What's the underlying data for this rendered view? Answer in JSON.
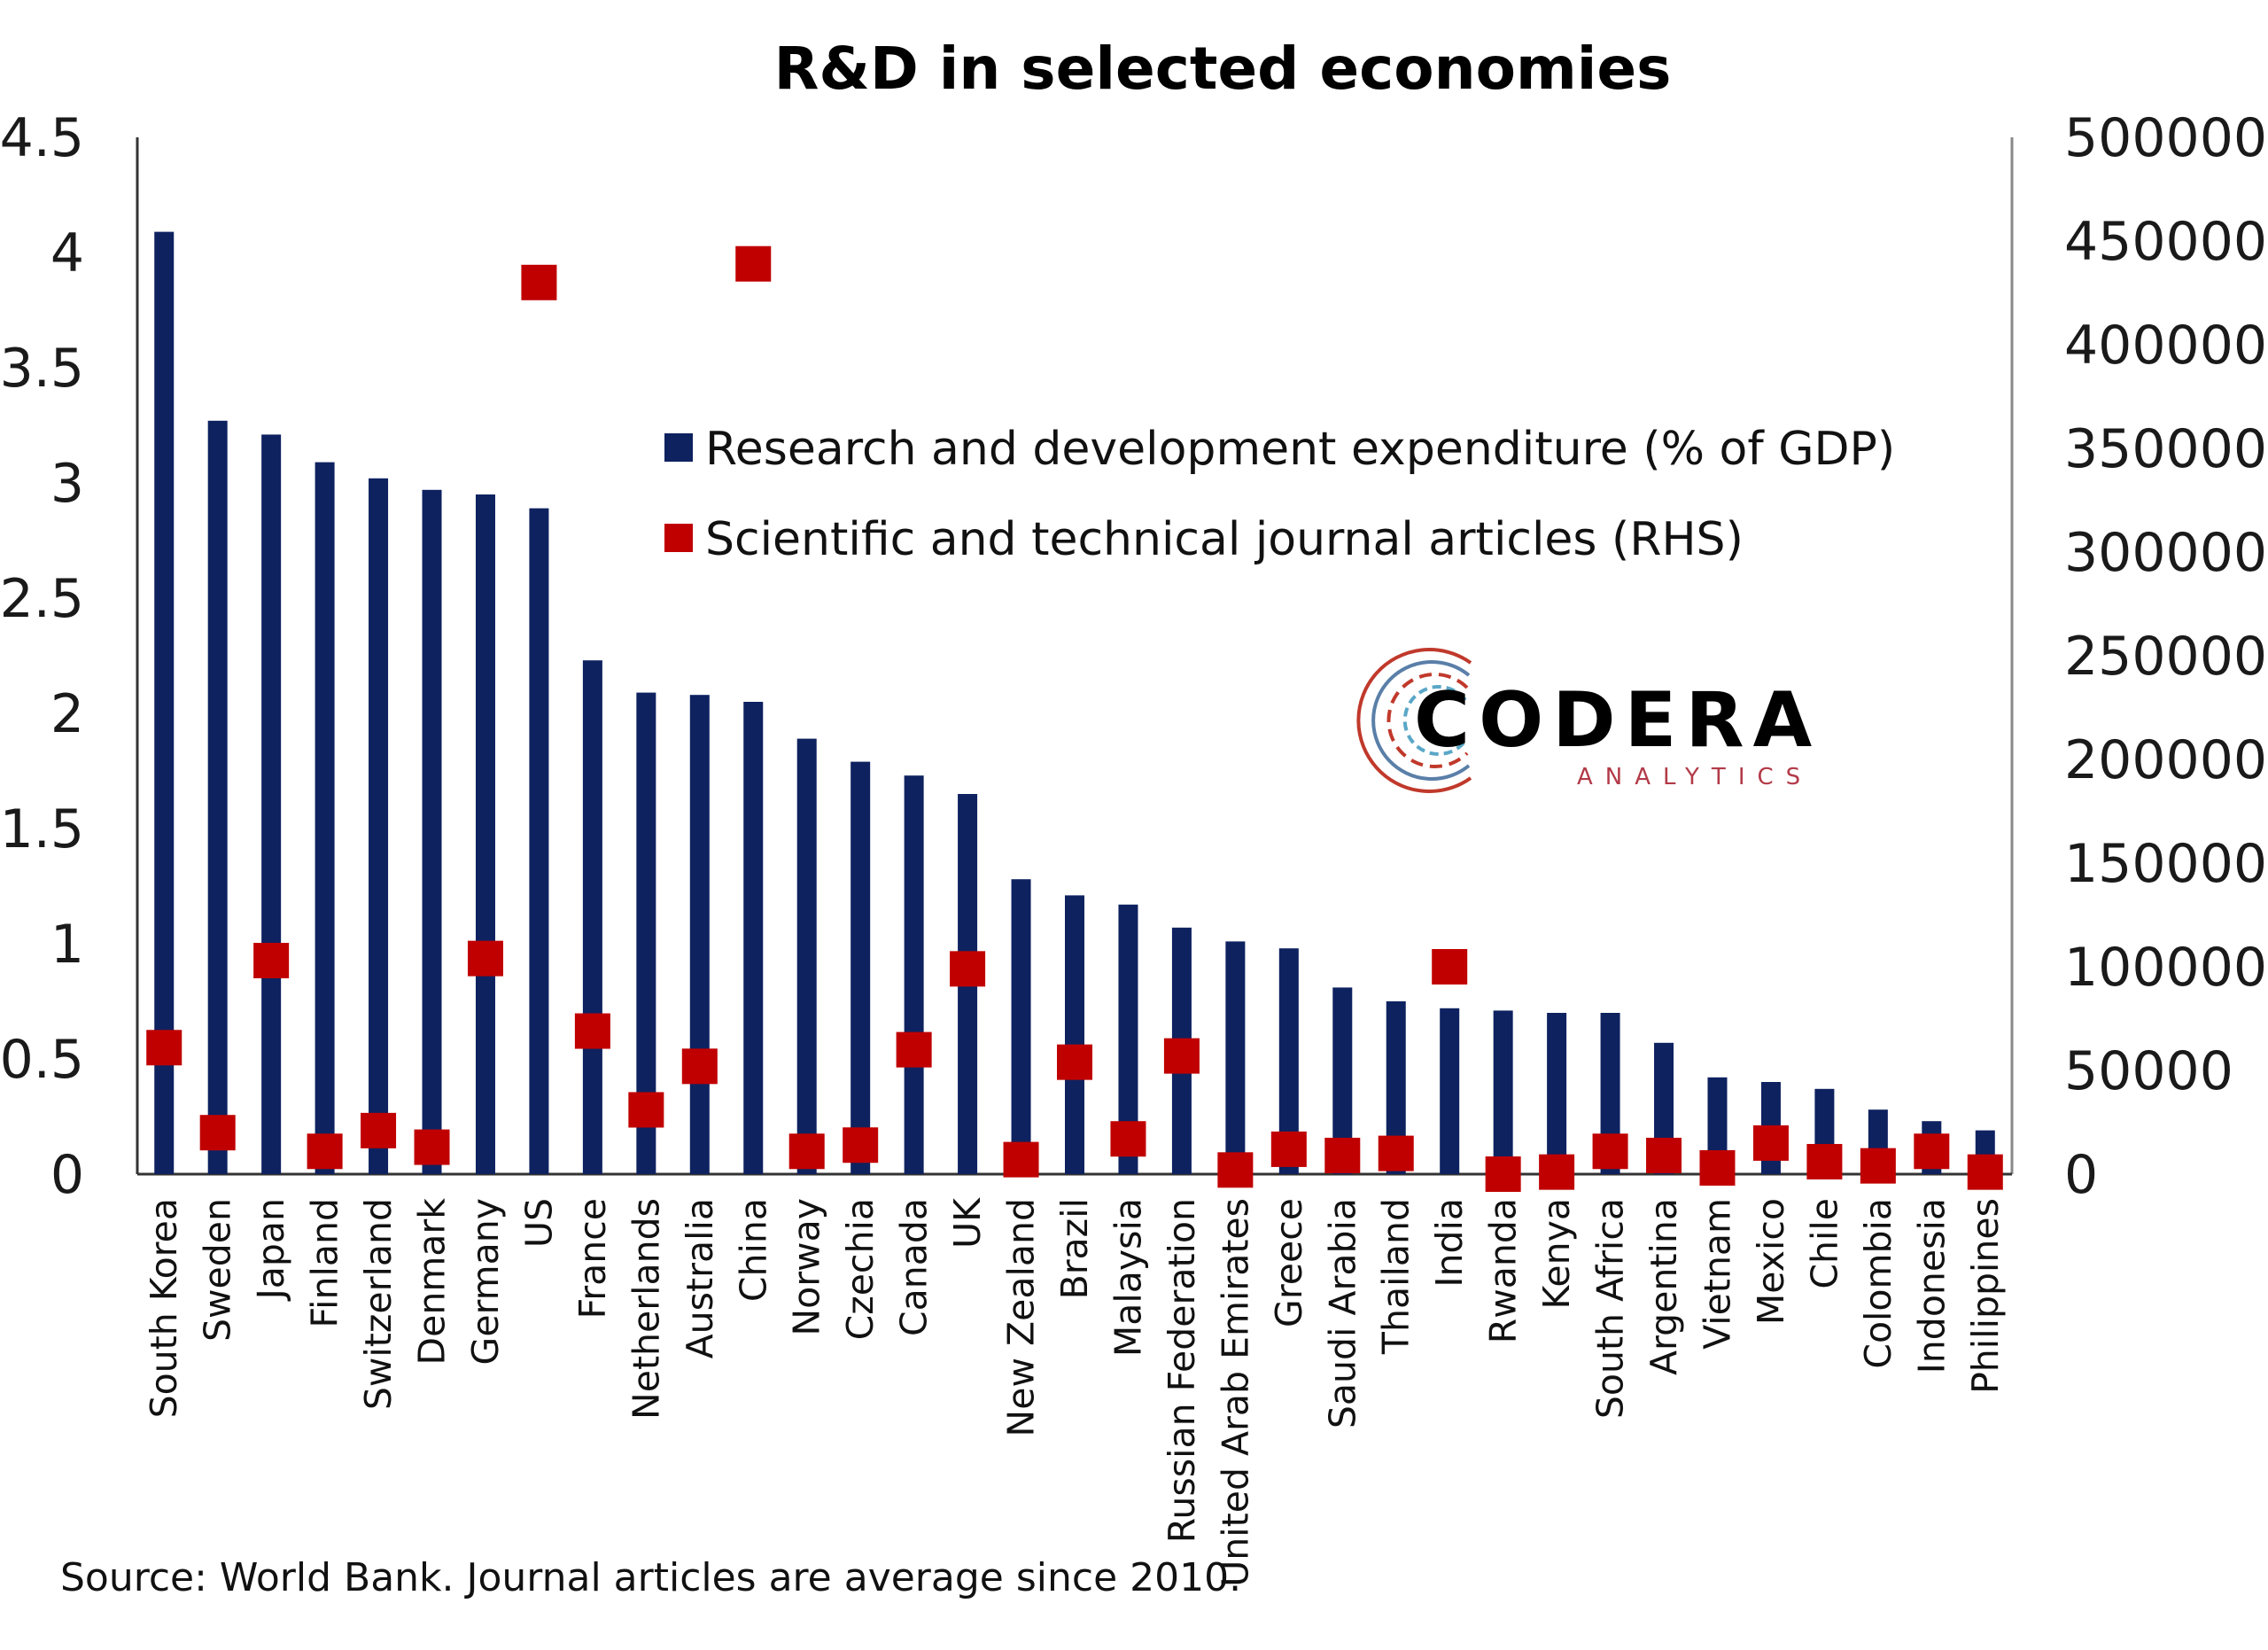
{
  "chart_data": {
    "type": "bar",
    "title": "R&D in selected economies",
    "categories": [
      "South Korea",
      "Sweden",
      "Japan",
      "Finland",
      "Switzerland",
      "Denmark",
      "Germany",
      "US",
      "France",
      "Netherlands",
      "Australia",
      "China",
      "Norway",
      "Czechia",
      "Canada",
      "UK",
      "New Zealand",
      "Brazil",
      "Malaysia",
      "Russian Federation",
      "United Arab Emirates",
      "Greece",
      "Saudi Arabia",
      "Thailand",
      "India",
      "Rwanda",
      "Kenya",
      "South Africa",
      "Argentina",
      "Vietnam",
      "Mexico",
      "Chile",
      "Colombia",
      "Indonesia",
      "Philippines"
    ],
    "series": [
      {
        "name": "Research and development expenditure (% of GDP)",
        "type": "bar",
        "axis": "left",
        "color": "#0e2260",
        "values": [
          4.09,
          3.27,
          3.21,
          3.09,
          3.02,
          2.97,
          2.95,
          2.89,
          2.23,
          2.09,
          2.08,
          2.05,
          1.89,
          1.79,
          1.73,
          1.65,
          1.28,
          1.21,
          1.17,
          1.07,
          1.01,
          0.98,
          0.81,
          0.75,
          0.72,
          0.71,
          0.7,
          0.7,
          0.57,
          0.42,
          0.4,
          0.37,
          0.28,
          0.23,
          0.19
        ]
      },
      {
        "name": "Scientific and technical journal articles (RHS)",
        "type": "scatter",
        "axis": "right",
        "color": "#c00000",
        "values": [
          61000,
          20000,
          103000,
          11000,
          21000,
          13000,
          104000,
          430000,
          69000,
          31000,
          52000,
          439000,
          11000,
          14000,
          60000,
          99000,
          7000,
          54000,
          17000,
          57000,
          2000,
          12000,
          9000,
          10000,
          100000,
          0,
          1000,
          11000,
          9000,
          3000,
          15000,
          6000,
          4000,
          11000,
          1000
        ]
      }
    ],
    "y_left": {
      "min": 0,
      "max": 4.5,
      "ticks": [
        "0",
        "0.5",
        "1",
        "1.5",
        "2",
        "2.5",
        "3",
        "3.5",
        "4",
        "4.5"
      ]
    },
    "y_right": {
      "min": 0,
      "max": 500000,
      "ticks": [
        "0",
        "50000",
        "100000",
        "150000",
        "200000",
        "250000",
        "300000",
        "350000",
        "400000",
        "450000",
        "500000"
      ]
    },
    "grid": false,
    "legend_position": "upper-center"
  },
  "source_note": "Source: World Bank. Journal articles are average since 2010.",
  "logo": {
    "name": "CODERA",
    "subtitle": "ANALYTICS"
  }
}
